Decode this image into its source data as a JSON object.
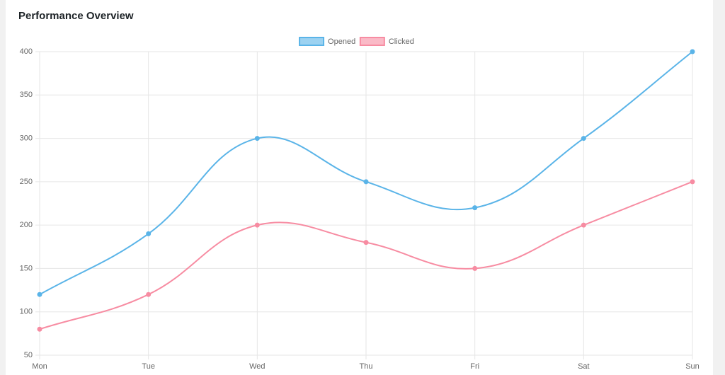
{
  "title": "Performance Overview",
  "chart_data": {
    "type": "line",
    "categories": [
      "Mon",
      "Tue",
      "Wed",
      "Thu",
      "Fri",
      "Sat",
      "Sun"
    ],
    "series": [
      {
        "name": "Opened",
        "color": "#5ab4e8",
        "values": [
          120,
          190,
          300,
          250,
          220,
          300,
          400
        ]
      },
      {
        "name": "Clicked",
        "color": "#f78ca2",
        "values": [
          80,
          120,
          200,
          180,
          150,
          200,
          250
        ]
      }
    ],
    "ylim": [
      50,
      400
    ],
    "yticks": [
      50,
      100,
      150,
      200,
      250,
      300,
      350,
      400
    ],
    "grid": true,
    "legend": "top"
  }
}
